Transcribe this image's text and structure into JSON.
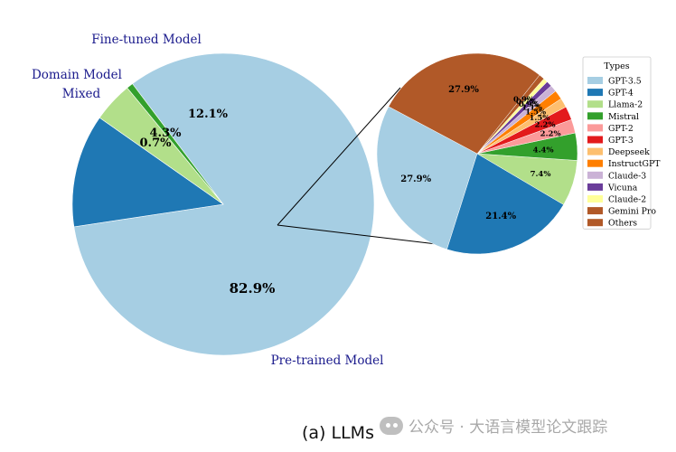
{
  "chart_data": [
    {
      "type": "pie",
      "categories": [
        "Pre-trained Model",
        "Fine-tuned Model",
        "Domain Model",
        "Mixed"
      ],
      "values": [
        82.9,
        12.1,
        4.3,
        0.7
      ],
      "labels": [
        "82.9%",
        "12.1%",
        "4.3%",
        "0.7%"
      ],
      "colors": [
        "#a6cee3",
        "#1f78b4",
        "#b2df8a",
        "#33a02c"
      ]
    },
    {
      "type": "pie",
      "legend_title": "Types",
      "legend_position": "right",
      "categories": [
        "GPT-3.5",
        "GPT-4",
        "Llama-2",
        "Mistral",
        "GPT-2",
        "GPT-3",
        "Deepseek",
        "InstructGPT",
        "Claude-3",
        "Vicuna",
        "Claude-2",
        "Gemini Pro",
        "Others"
      ],
      "values": [
        27.9,
        21.4,
        7.4,
        4.4,
        2.2,
        2.2,
        1.5,
        1.5,
        1.1,
        0.9,
        0.7,
        0.9,
        27.9
      ],
      "labels": [
        "27.9%",
        "21.4%",
        "7.4%",
        "4.4%",
        "2.2%",
        "2.2%",
        "1.5%",
        "1.5%",
        "1.1%",
        "0.9%",
        "0.7%",
        "0.9%",
        "27.9%"
      ],
      "colors": [
        "#a6cee3",
        "#1f78b4",
        "#b2df8a",
        "#33a02c",
        "#fb9a99",
        "#e31a1c",
        "#fdbf6f",
        "#ff7f00",
        "#cab2d6",
        "#6a3d9a",
        "#ffff99",
        "#b15928",
        "#b15928"
      ]
    }
  ],
  "caption": "(a) LLMs",
  "watermark": "公众号 · 大语言模型论文跟踪"
}
